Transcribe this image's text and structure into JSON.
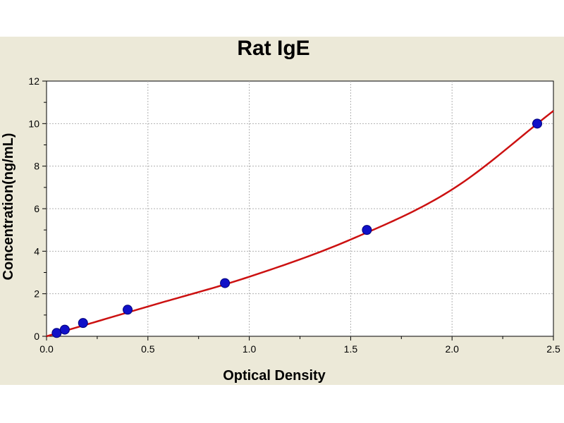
{
  "chart_data": {
    "type": "scatter",
    "title": "Rat IgE",
    "xlabel": "Optical Density",
    "ylabel": "Concentration(ng/mL)",
    "xlim": [
      0,
      2.5
    ],
    "ylim": [
      0,
      12
    ],
    "xticks": [
      "0.0",
      "0.5",
      "1.0",
      "1.5",
      "2.0",
      "2.5"
    ],
    "yticks": [
      "0",
      "2",
      "4",
      "6",
      "8",
      "10",
      "12"
    ],
    "grid": true,
    "series": [
      {
        "points": [
          {
            "x": 0.05,
            "y": 0.156
          },
          {
            "x": 0.09,
            "y": 0.312
          },
          {
            "x": 0.18,
            "y": 0.625
          },
          {
            "x": 0.4,
            "y": 1.25
          },
          {
            "x": 0.88,
            "y": 2.5
          },
          {
            "x": 1.58,
            "y": 5.0
          },
          {
            "x": 2.42,
            "y": 10.0
          }
        ],
        "color": "#1010c8"
      }
    ],
    "fit_curve": {
      "color": "#cc1111",
      "points": [
        {
          "x": 0.0,
          "y": 0.0
        },
        {
          "x": 0.5,
          "y": 1.4
        },
        {
          "x": 1.0,
          "y": 2.8
        },
        {
          "x": 1.5,
          "y": 4.55
        },
        {
          "x": 2.0,
          "y": 6.9
        },
        {
          "x": 2.5,
          "y": 10.6
        }
      ]
    }
  }
}
